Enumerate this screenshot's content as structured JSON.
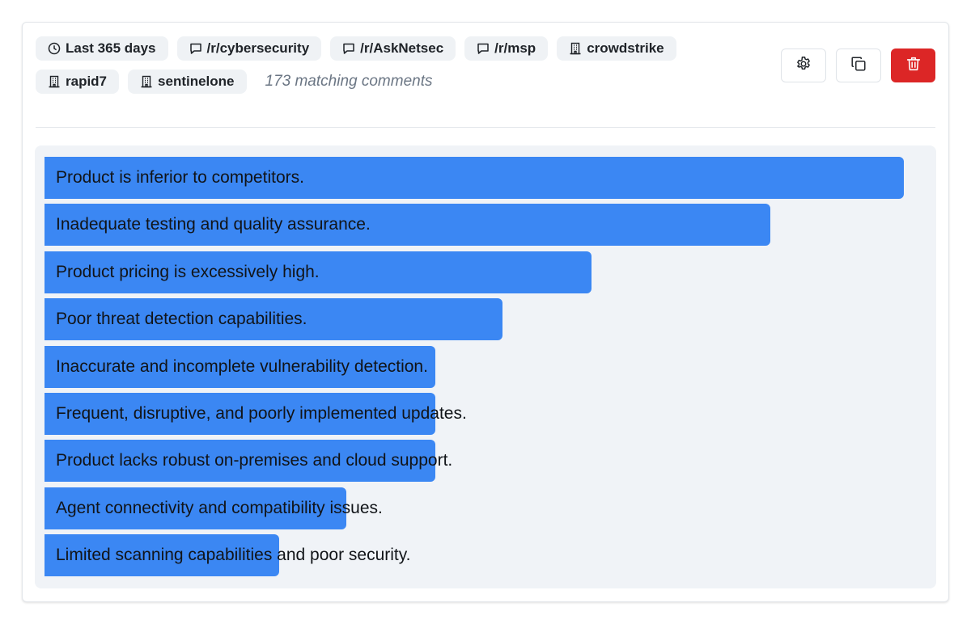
{
  "filters": {
    "row1": [
      {
        "icon": "clock-icon",
        "label": "Last 365 days"
      },
      {
        "icon": "chat-bubble-icon",
        "label": "/r/cybersecurity"
      },
      {
        "icon": "chat-bubble-icon",
        "label": "/r/AskNetsec"
      },
      {
        "icon": "chat-bubble-icon",
        "label": "/r/msp"
      },
      {
        "icon": "building-icon",
        "label": "crowdstrike"
      }
    ],
    "row2": [
      {
        "icon": "building-icon",
        "label": "rapid7"
      },
      {
        "icon": "building-icon",
        "label": "sentinelone"
      }
    ],
    "match_count": "173 matching comments"
  },
  "toolbar": {
    "settings_icon": "gear-icon",
    "copy_icon": "copy-icon",
    "delete_icon": "trash-icon",
    "delete_color": "#dc2626"
  },
  "chart_data": {
    "type": "bar",
    "orientation": "horizontal",
    "bar_color": "#3b87f3",
    "categories": [
      "Product is inferior to competitors.",
      "Inadequate testing and quality assurance.",
      "Product pricing is excessively high.",
      "Poor threat detection capabilities.",
      "Inaccurate and incomplete vulnerability detection.",
      "Frequent, disruptive, and poorly implemented updates.",
      "Product lacks robust on-premises and cloud support.",
      "Agent connectivity and compatibility issues.",
      "Limited scanning capabilities and poor security."
    ],
    "values": [
      1.0,
      0.845,
      0.637,
      0.533,
      0.455,
      0.455,
      0.455,
      0.351,
      0.273
    ]
  }
}
